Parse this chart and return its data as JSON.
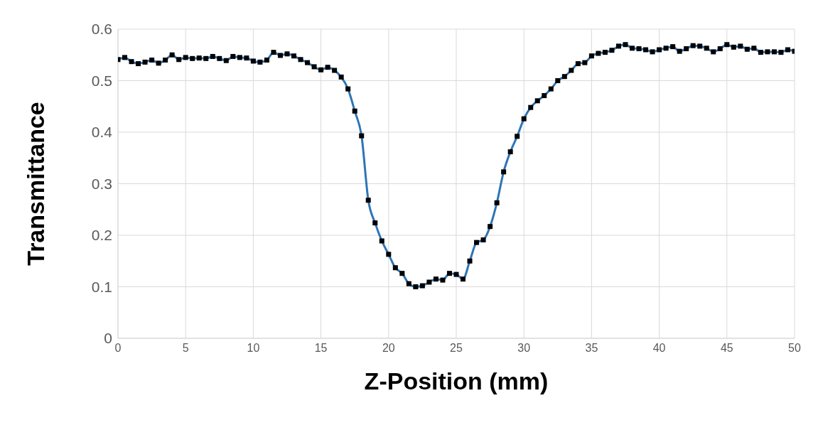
{
  "chart_data": {
    "type": "line",
    "xlabel": "Z-Position (mm)",
    "ylabel": "Transmittance",
    "x": [
      0,
      0.5,
      1,
      1.5,
      2,
      2.5,
      3,
      3.5,
      4,
      4.5,
      5,
      5.5,
      6,
      6.5,
      7,
      7.5,
      8,
      8.5,
      9,
      9.5,
      10,
      10.5,
      11,
      11.5,
      12,
      12.5,
      13,
      13.5,
      14,
      14.5,
      15,
      15.5,
      16,
      16.5,
      17,
      17.5,
      18,
      18.5,
      19,
      19.5,
      20,
      20.5,
      21,
      21.5,
      22,
      22.5,
      23,
      23.5,
      24,
      24.5,
      25,
      25.5,
      26,
      26.5,
      27,
      27.5,
      28,
      28.5,
      29,
      29.5,
      30,
      30.5,
      31,
      31.5,
      32,
      32.5,
      33,
      33.5,
      34,
      34.5,
      35,
      35.5,
      36,
      36.5,
      37,
      37.5,
      38,
      38.5,
      39,
      39.5,
      40,
      40.5,
      41,
      41.5,
      42,
      42.5,
      43,
      43.5,
      44,
      44.5,
      45,
      45.5,
      46,
      46.5,
      47,
      47.5,
      48,
      48.5,
      49,
      49.5,
      50
    ],
    "series": [
      {
        "color": "#2e75b6",
        "values": [
          0.541,
          0.545,
          0.537,
          0.533,
          0.536,
          0.54,
          0.534,
          0.54,
          0.55,
          0.541,
          0.545,
          0.543,
          0.544,
          0.543,
          0.547,
          0.543,
          0.539,
          0.547,
          0.545,
          0.544,
          0.538,
          0.536,
          0.54,
          0.555,
          0.549,
          0.552,
          0.548,
          0.541,
          0.535,
          0.527,
          0.521,
          0.526,
          0.52,
          0.507,
          0.484,
          0.441,
          0.393,
          0.268,
          0.224,
          0.189,
          0.163,
          0.137,
          0.126,
          0.106,
          0.1,
          0.102,
          0.109,
          0.115,
          0.113,
          0.126,
          0.124,
          0.115,
          0.15,
          0.186,
          0.191,
          0.217,
          0.263,
          0.323,
          0.362,
          0.392,
          0.426,
          0.448,
          0.461,
          0.471,
          0.484,
          0.5,
          0.508,
          0.52,
          0.533,
          0.535,
          0.548,
          0.553,
          0.555,
          0.559,
          0.567,
          0.57,
          0.563,
          0.562,
          0.56,
          0.556,
          0.56,
          0.563,
          0.566,
          0.557,
          0.562,
          0.568,
          0.567,
          0.563,
          0.556,
          0.562,
          0.57,
          0.565,
          0.567,
          0.561,
          0.563,
          0.555,
          0.556,
          0.556,
          0.555,
          0.56,
          0.557
        ]
      }
    ],
    "xlim": [
      0,
      50
    ],
    "xticks": [
      0,
      5,
      10,
      15,
      20,
      25,
      30,
      35,
      40,
      45,
      50
    ],
    "ylim": [
      0,
      0.6
    ],
    "yticks": [
      0,
      0.1,
      0.2,
      0.3,
      0.4,
      0.5,
      0.6
    ],
    "grid": true,
    "legend": false,
    "marker": "square",
    "line_style": "solid"
  }
}
